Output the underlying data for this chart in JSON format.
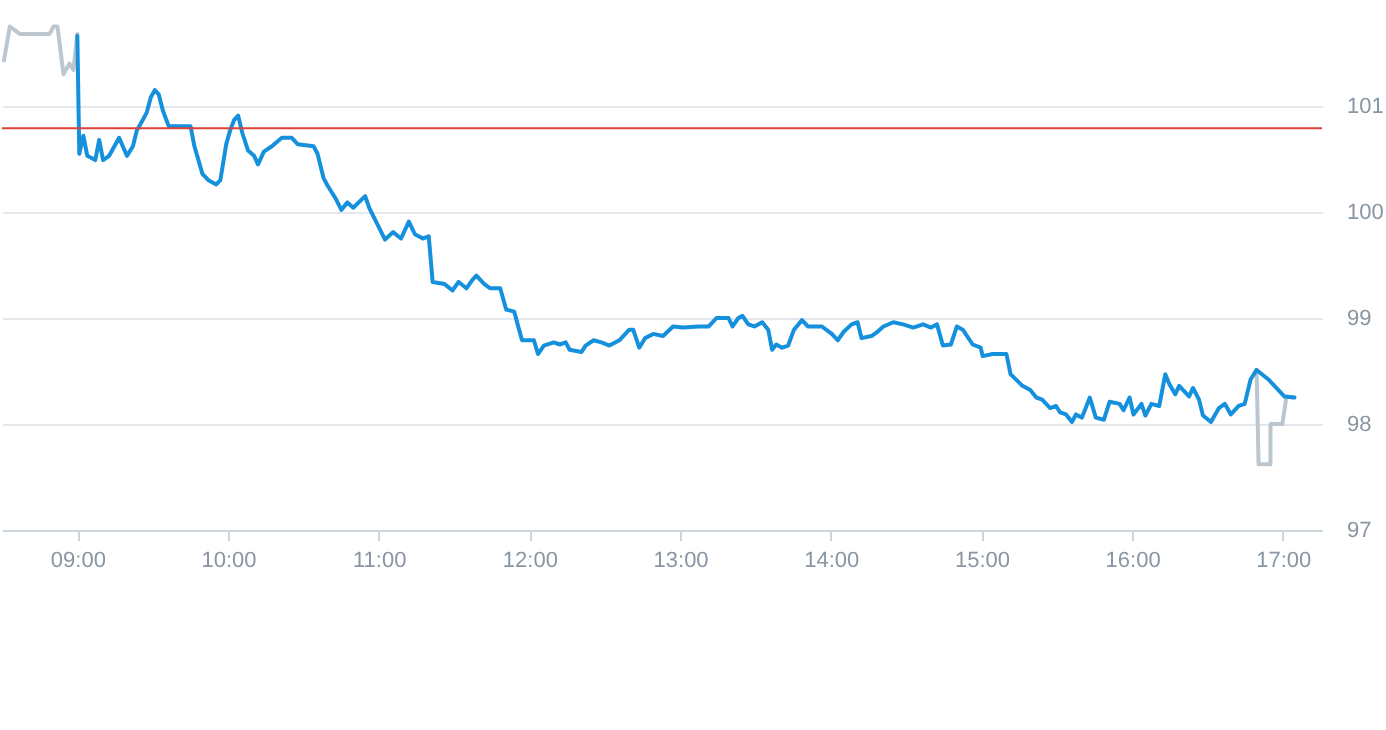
{
  "chart_data": {
    "type": "line",
    "xlim": [
      8.5,
      17.26
    ],
    "ylim": [
      97,
      102
    ],
    "xticks": [
      {
        "value": 9,
        "label": "09:00"
      },
      {
        "value": 10,
        "label": "10:00"
      },
      {
        "value": 11,
        "label": "11:00"
      },
      {
        "value": 12,
        "label": "12:00"
      },
      {
        "value": 13,
        "label": "13:00"
      },
      {
        "value": 14,
        "label": "14:00"
      },
      {
        "value": 15,
        "label": "15:00"
      },
      {
        "value": 16,
        "label": "16:00"
      },
      {
        "value": 17,
        "label": "17:00"
      }
    ],
    "yticks": [
      97,
      98,
      99,
      100,
      101
    ],
    "grid": "y",
    "marker": "none",
    "line_style": "solid",
    "ref_lines": [
      {
        "axis": "y",
        "value": 100.79,
        "color": "#d9423a"
      }
    ],
    "series": [
      {
        "color": "#bcc6cf",
        "x": [
          8.513,
          8.552,
          8.618,
          8.816,
          8.842,
          8.868,
          8.908,
          8.947,
          8.974,
          9.0,
          9.5,
          16.826,
          16.839,
          16.918,
          16.918,
          16.997,
          17.024,
          17.077
        ],
        "values": [
          101.43,
          101.75,
          101.68,
          101.68,
          101.75,
          101.75,
          101.3,
          101.4,
          101.34,
          101.68,
          null,
          98.51,
          97.62,
          97.62,
          98.0,
          98.0,
          98.26,
          98.25
        ]
      },
      {
        "color": "#1590dc",
        "x": [
          9.0,
          9.013,
          9.04,
          9.066,
          9.119,
          9.145,
          9.171,
          9.211,
          9.277,
          9.329,
          9.369,
          9.395,
          9.435,
          9.461,
          9.487,
          9.514,
          9.54,
          9.567,
          9.606,
          9.751,
          9.777,
          9.83,
          9.87,
          9.922,
          9.949,
          9.988,
          10.014,
          10.041,
          10.067,
          10.094,
          10.133,
          10.173,
          10.199,
          10.238,
          10.291,
          10.357,
          10.423,
          10.462,
          10.568,
          10.594,
          10.634,
          10.66,
          10.713,
          10.752,
          10.792,
          10.831,
          10.91,
          10.937,
          10.989,
          11.042,
          11.095,
          11.148,
          11.2,
          11.24,
          11.293,
          11.332,
          11.358,
          11.437,
          11.49,
          11.53,
          11.582,
          11.622,
          11.648,
          11.701,
          11.74,
          11.806,
          11.846,
          11.899,
          11.951,
          12.03,
          12.057,
          12.096,
          12.162,
          12.202,
          12.241,
          12.267,
          12.346,
          12.373,
          12.426,
          12.478,
          12.531,
          12.597,
          12.663,
          12.689,
          12.729,
          12.768,
          12.821,
          12.887,
          12.953,
          13.019,
          13.124,
          13.19,
          13.242,
          13.321,
          13.348,
          13.387,
          13.414,
          13.453,
          13.493,
          13.545,
          13.585,
          13.611,
          13.638,
          13.677,
          13.717,
          13.756,
          13.809,
          13.848,
          13.941,
          14.007,
          14.046,
          14.086,
          14.138,
          14.178,
          14.204,
          14.27,
          14.31,
          14.349,
          14.415,
          14.481,
          14.547,
          14.613,
          14.665,
          14.705,
          14.744,
          14.797,
          14.837,
          14.876,
          14.942,
          14.995,
          15.008,
          15.074,
          15.166,
          15.193,
          15.272,
          15.324,
          15.364,
          15.403,
          15.456,
          15.495,
          15.522,
          15.561,
          15.601,
          15.627,
          15.667,
          15.719,
          15.759,
          15.812,
          15.851,
          15.917,
          15.943,
          15.983,
          16.009,
          16.062,
          16.088,
          16.128,
          16.18,
          16.22,
          16.246,
          16.286,
          16.312,
          16.378,
          16.404,
          16.444,
          16.47,
          16.523,
          16.576,
          16.615,
          16.655,
          16.707,
          16.747,
          16.786,
          16.826,
          16.905,
          17.01,
          17.077
        ],
        "values": [
          101.66,
          100.55,
          100.72,
          100.53,
          100.49,
          100.68,
          100.49,
          100.53,
          100.7,
          100.53,
          100.62,
          100.77,
          100.87,
          100.94,
          101.08,
          101.15,
          101.11,
          100.96,
          100.81,
          100.81,
          100.62,
          100.36,
          100.3,
          100.26,
          100.3,
          100.64,
          100.77,
          100.87,
          100.91,
          100.75,
          100.58,
          100.53,
          100.45,
          100.57,
          100.62,
          100.7,
          100.7,
          100.64,
          100.62,
          100.55,
          100.32,
          100.25,
          100.13,
          100.02,
          100.09,
          100.04,
          100.15,
          100.04,
          99.89,
          99.74,
          99.81,
          99.75,
          99.91,
          99.79,
          99.75,
          99.77,
          99.34,
          99.32,
          99.26,
          99.34,
          99.28,
          99.36,
          99.4,
          99.32,
          99.28,
          99.28,
          99.08,
          99.06,
          98.79,
          98.79,
          98.66,
          98.74,
          98.77,
          98.75,
          98.77,
          98.7,
          98.68,
          98.74,
          98.79,
          98.77,
          98.74,
          98.79,
          98.89,
          98.89,
          98.72,
          98.81,
          98.85,
          98.83,
          98.92,
          98.91,
          98.92,
          98.92,
          99.0,
          99.0,
          98.92,
          99.0,
          99.02,
          98.94,
          98.92,
          98.96,
          98.89,
          98.7,
          98.75,
          98.72,
          98.74,
          98.89,
          98.98,
          98.92,
          98.92,
          98.85,
          98.79,
          98.87,
          98.94,
          98.96,
          98.81,
          98.83,
          98.87,
          98.92,
          98.96,
          98.94,
          98.91,
          98.94,
          98.91,
          98.94,
          98.74,
          98.75,
          98.92,
          98.89,
          98.75,
          98.72,
          98.64,
          98.66,
          98.66,
          98.47,
          98.36,
          98.32,
          98.25,
          98.23,
          98.15,
          98.17,
          98.11,
          98.09,
          98.02,
          98.09,
          98.06,
          98.25,
          98.06,
          98.04,
          98.21,
          98.19,
          98.13,
          98.25,
          98.09,
          98.19,
          98.08,
          98.19,
          98.17,
          98.47,
          98.38,
          98.28,
          98.36,
          98.26,
          98.34,
          98.23,
          98.08,
          98.02,
          98.15,
          98.19,
          98.09,
          98.17,
          98.19,
          98.42,
          98.51,
          98.42,
          98.26,
          98.25
        ]
      }
    ]
  }
}
